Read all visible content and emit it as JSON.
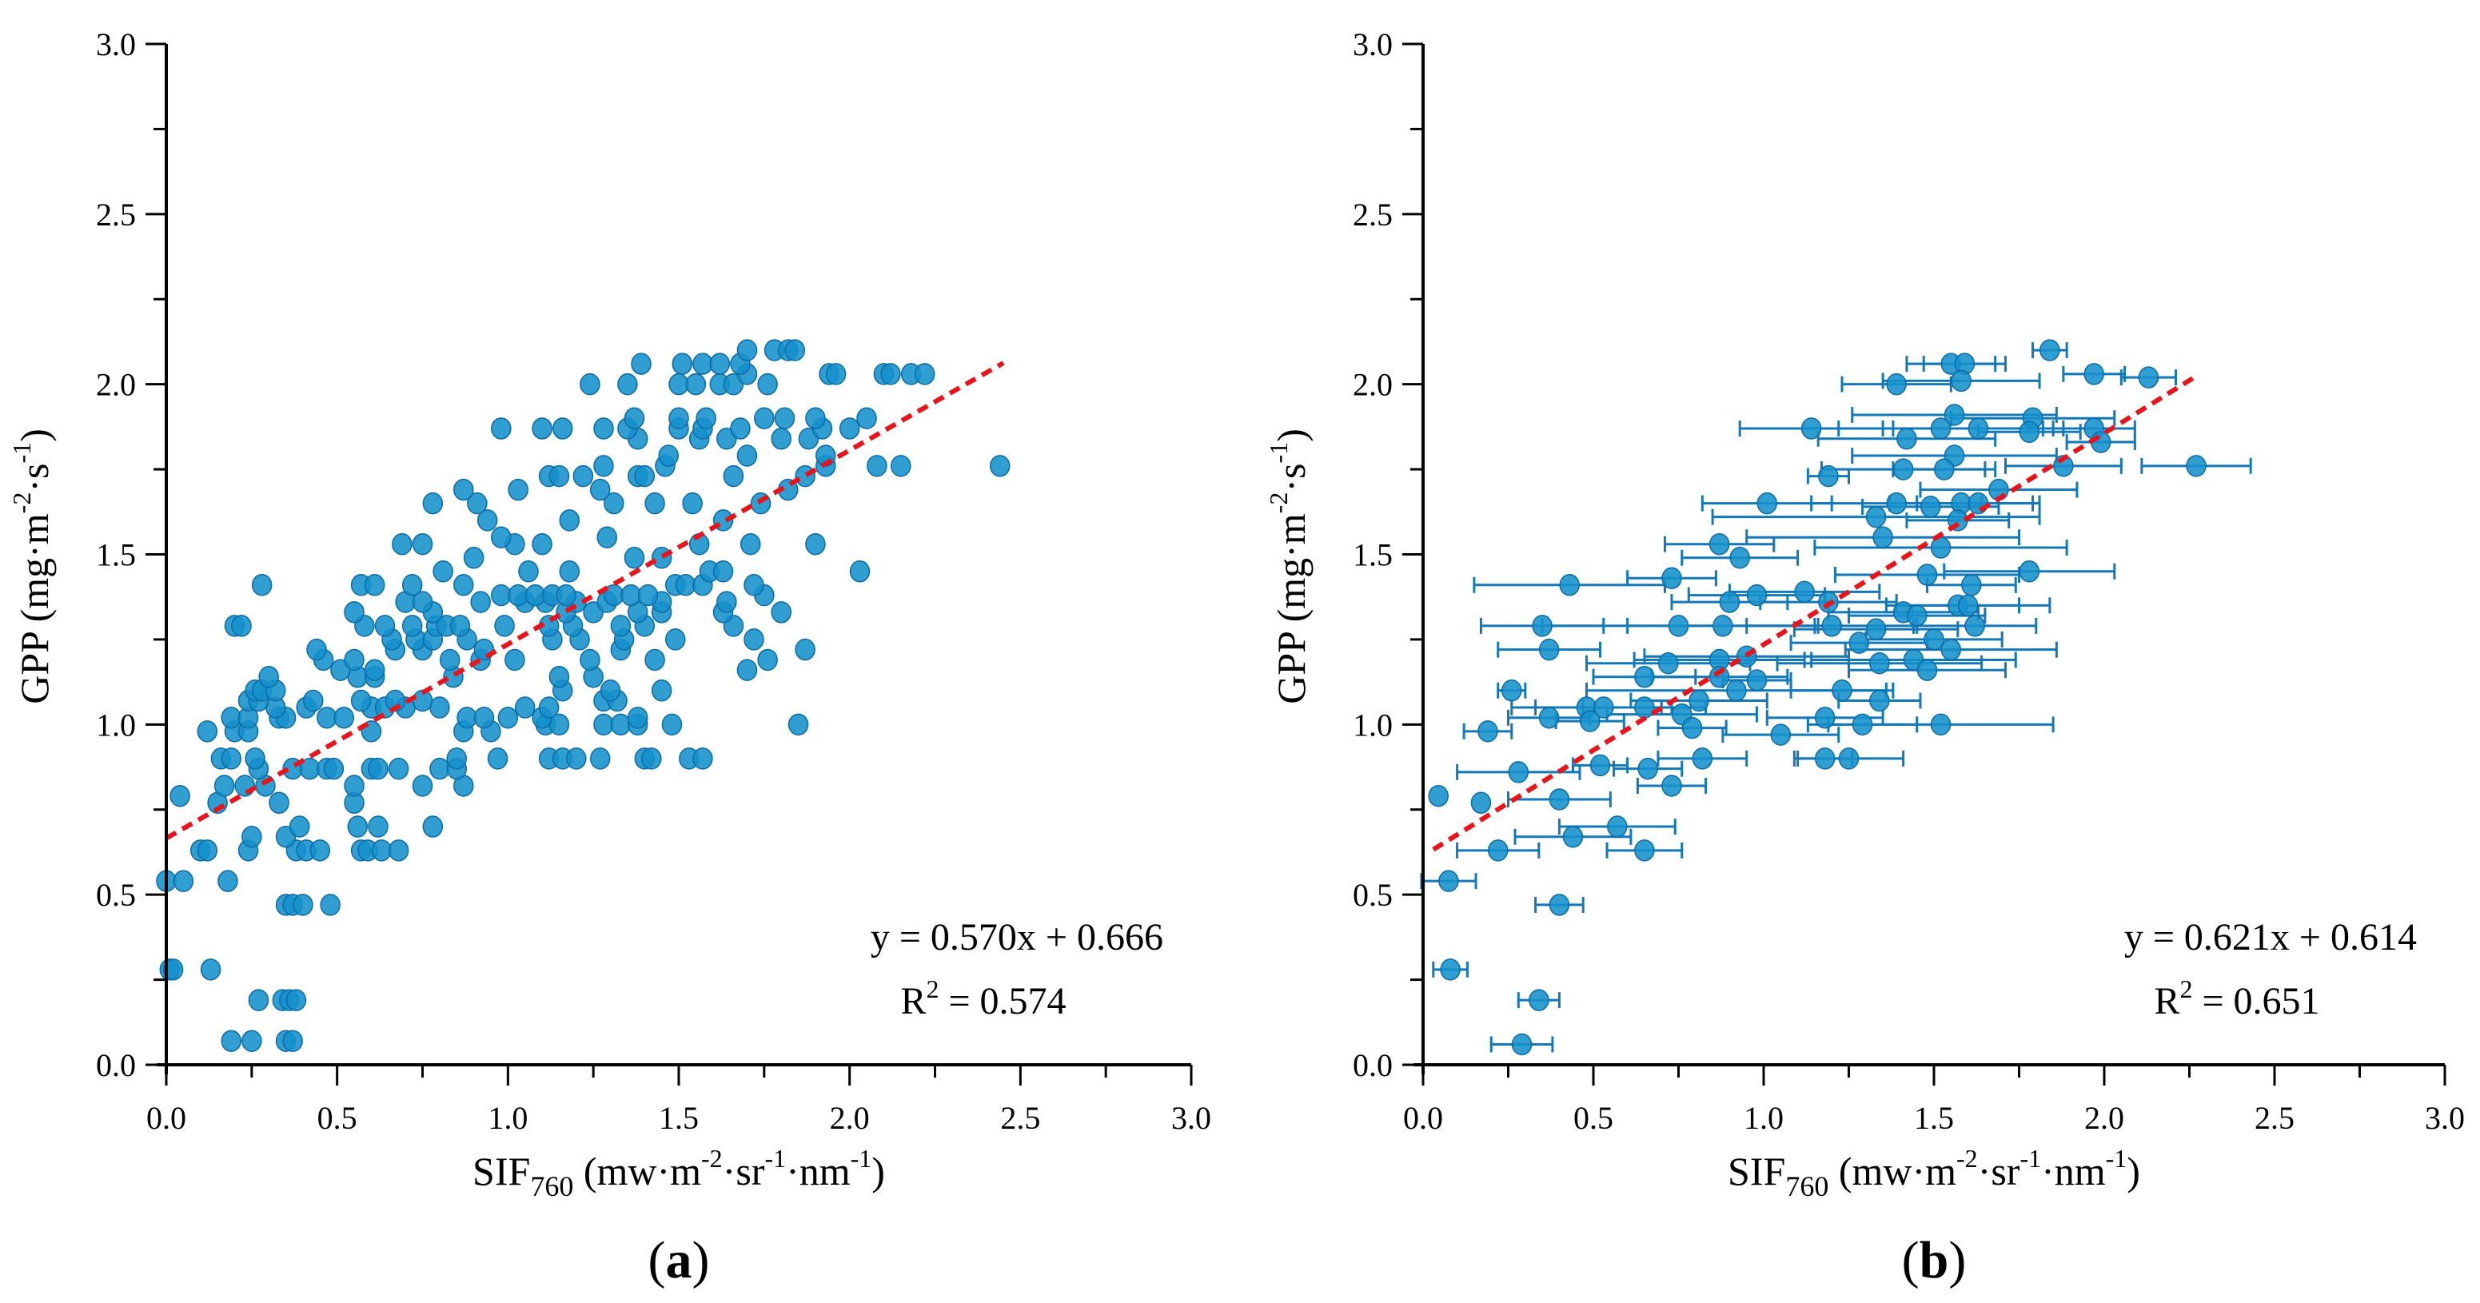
{
  "colors": {
    "marker_fill": "#1591cc",
    "marker_edge": "#0b6aa6",
    "fit_line": "#e8141b",
    "errorbar": "#1278b8",
    "axis": "#000000"
  },
  "chart_data": [
    {
      "type": "scatter",
      "panel_label": {
        "open": "(",
        "letter": "a",
        "close": ")"
      },
      "xlabel": {
        "main": "SIF",
        "sub": "760",
        "p1": " (mw·m",
        "e1": "-2",
        "p2": "·sr",
        "e2": "-1",
        "p3": "·nm",
        "e3": "-1",
        "p4": ")"
      },
      "ylabel": {
        "main": "GPP (mg·m",
        "e1": "-2",
        "p2": "·s",
        "e2": "-1",
        "p3": ")"
      },
      "xlim": [
        0,
        3.0
      ],
      "ylim": [
        0,
        3.0
      ],
      "xticks": [
        "0.0",
        "0.5",
        "1.0",
        "1.5",
        "2.0",
        "2.5",
        "3.0"
      ],
      "yticks": [
        "0.0",
        "0.5",
        "1.0",
        "1.5",
        "2.0",
        "2.5",
        "3.0"
      ],
      "grid": false,
      "fit": {
        "slope": 0.57,
        "intercept": 0.666,
        "x_range": [
          0.0,
          2.45
        ],
        "style": "dashed"
      },
      "equation": {
        "line1": "y = 0.570x + 0.666",
        "r_prefix": "R",
        "r_exp": "2",
        "r_value": " = 0.574"
      },
      "points_by_gpp": [
        {
          "y": 0.07,
          "x": [
            0.19,
            0.25,
            0.35,
            0.37
          ]
        },
        {
          "y": 0.19,
          "x": [
            0.27,
            0.34,
            0.36,
            0.38
          ]
        },
        {
          "y": 0.28,
          "x": [
            0.01,
            0.02,
            0.13
          ]
        },
        {
          "y": 0.47,
          "x": [
            0.35,
            0.37,
            0.4,
            0.48
          ]
        },
        {
          "y": 0.54,
          "x": [
            0.0,
            0.05,
            0.18
          ]
        },
        {
          "y": 0.63,
          "x": [
            0.1,
            0.12,
            0.24,
            0.38,
            0.41,
            0.45,
            0.57,
            0.59,
            0.63,
            0.68
          ]
        },
        {
          "y": 0.67,
          "x": [
            0.25,
            0.35
          ]
        },
        {
          "y": 0.7,
          "x": [
            0.39,
            0.56,
            0.62,
            0.78
          ]
        },
        {
          "y": 0.77,
          "x": [
            0.15,
            0.33,
            0.55
          ]
        },
        {
          "y": 0.79,
          "x": [
            0.04
          ]
        },
        {
          "y": 0.82,
          "x": [
            0.17,
            0.23,
            0.29,
            0.55,
            0.75,
            0.87
          ]
        },
        {
          "y": 0.87,
          "x": [
            0.27,
            0.37,
            0.42,
            0.47,
            0.49,
            0.6,
            0.62,
            0.68,
            0.8,
            0.85
          ]
        },
        {
          "y": 0.9,
          "x": [
            0.16,
            0.19,
            0.26,
            0.85,
            0.97,
            1.12,
            1.16,
            1.2,
            1.27,
            1.4,
            1.42,
            1.53,
            1.57
          ]
        },
        {
          "y": 0.98,
          "x": [
            0.12,
            0.2,
            0.24,
            0.6,
            0.87,
            0.95
          ]
        },
        {
          "y": 1.0,
          "x": [
            1.11,
            1.15,
            1.28,
            1.33,
            1.38,
            1.48,
            1.85
          ]
        },
        {
          "y": 1.02,
          "x": [
            0.19,
            0.24,
            0.33,
            0.35,
            0.47,
            0.52,
            0.88,
            0.93,
            1.0,
            1.1,
            1.38
          ]
        },
        {
          "y": 1.05,
          "x": [
            0.32,
            0.41,
            0.6,
            0.64,
            0.7,
            0.8,
            1.05,
            1.12
          ]
        },
        {
          "y": 1.07,
          "x": [
            0.24,
            0.27,
            0.43,
            0.57,
            0.67,
            0.75,
            1.28,
            1.32
          ]
        },
        {
          "y": 1.1,
          "x": [
            0.26,
            0.28,
            0.32,
            1.16,
            1.3,
            1.45
          ]
        },
        {
          "y": 1.14,
          "x": [
            0.3,
            0.56,
            0.61,
            0.84,
            1.15,
            1.25
          ]
        },
        {
          "y": 1.16,
          "x": [
            0.51,
            0.61,
            1.7
          ]
        },
        {
          "y": 1.19,
          "x": [
            0.46,
            0.55,
            0.83,
            0.92,
            1.02,
            1.24,
            1.43,
            1.76
          ]
        },
        {
          "y": 1.22,
          "x": [
            0.44,
            0.67,
            0.75,
            0.93,
            1.33,
            1.87
          ]
        },
        {
          "y": 1.25,
          "x": [
            0.66,
            0.73,
            0.78,
            0.88,
            1.13,
            1.21,
            1.34,
            1.49,
            1.72
          ]
        },
        {
          "y": 1.29,
          "x": [
            0.2,
            0.22,
            0.58,
            0.64,
            0.72,
            0.79,
            0.82,
            0.86,
            0.99,
            1.12,
            1.19,
            1.33,
            1.4,
            1.66
          ]
        },
        {
          "y": 1.33,
          "x": [
            0.55,
            0.78,
            1.17,
            1.25,
            1.38,
            1.45,
            1.63,
            1.8
          ]
        },
        {
          "y": 1.36,
          "x": [
            0.7,
            0.75,
            0.92,
            1.05,
            1.11,
            1.2,
            1.29,
            1.45,
            1.64
          ]
        },
        {
          "y": 1.38,
          "x": [
            0.98,
            1.03,
            1.08,
            1.13,
            1.17,
            1.31,
            1.36,
            1.41,
            1.75
          ]
        },
        {
          "y": 1.41,
          "x": [
            0.28,
            0.57,
            0.61,
            0.72,
            0.87,
            1.49,
            1.52,
            1.57,
            1.72
          ]
        },
        {
          "y": 1.45,
          "x": [
            0.81,
            1.06,
            1.18,
            1.59,
            1.63,
            2.03
          ]
        },
        {
          "y": 1.49,
          "x": [
            0.9,
            1.37,
            1.45
          ]
        },
        {
          "y": 1.53,
          "x": [
            0.69,
            0.75,
            1.02,
            1.1,
            1.56,
            1.71,
            1.9
          ]
        },
        {
          "y": 1.55,
          "x": [
            0.98,
            1.29
          ]
        },
        {
          "y": 1.6,
          "x": [
            0.94,
            1.18,
            1.63
          ]
        },
        {
          "y": 1.65,
          "x": [
            0.78,
            0.91,
            1.31,
            1.43,
            1.54,
            1.74
          ]
        },
        {
          "y": 1.69,
          "x": [
            0.87,
            1.03,
            1.27,
            1.82
          ]
        },
        {
          "y": 1.73,
          "x": [
            1.12,
            1.15,
            1.22,
            1.38,
            1.4,
            1.66,
            1.87
          ]
        },
        {
          "y": 1.76,
          "x": [
            1.28,
            1.46,
            1.93,
            2.08,
            2.15,
            2.44
          ]
        },
        {
          "y": 1.79,
          "x": [
            1.47,
            1.7,
            1.93
          ]
        },
        {
          "y": 1.84,
          "x": [
            1.38,
            1.56,
            1.64,
            1.8,
            1.88
          ]
        },
        {
          "y": 1.87,
          "x": [
            0.98,
            1.1,
            1.16,
            1.28,
            1.35,
            1.5,
            1.57,
            1.68,
            1.92,
            2.0
          ]
        },
        {
          "y": 1.9,
          "x": [
            1.37,
            1.5,
            1.58,
            1.75,
            1.81,
            1.9,
            2.05
          ]
        },
        {
          "y": 2.0,
          "x": [
            1.24,
            1.35,
            1.5,
            1.55,
            1.62,
            1.66,
            1.76
          ]
        },
        {
          "y": 2.03,
          "x": [
            1.7,
            1.94,
            1.96,
            2.1,
            2.12,
            2.18,
            2.22
          ]
        },
        {
          "y": 2.06,
          "x": [
            1.39,
            1.51,
            1.57,
            1.62,
            1.68
          ]
        },
        {
          "y": 2.1,
          "x": [
            1.7,
            1.78,
            1.82,
            1.84
          ]
        }
      ]
    },
    {
      "type": "scatter",
      "panel_label": {
        "open": "(",
        "letter": "b",
        "close": ")"
      },
      "xlabel": {
        "main": "SIF",
        "sub": "760",
        "p1": " (mw·m",
        "e1": "-2",
        "p2": "·sr",
        "e2": "-1",
        "p3": "·nm",
        "e3": "-1",
        "p4": ")"
      },
      "ylabel": {
        "main": "GPP (mg·m",
        "e1": "-2",
        "p2": "·s",
        "e2": "-1",
        "p3": ")"
      },
      "xlim": [
        0,
        3.0
      ],
      "ylim": [
        0,
        3.0
      ],
      "xticks": [
        "0.0",
        "0.5",
        "1.0",
        "1.5",
        "2.0",
        "2.5",
        "3.0"
      ],
      "yticks": [
        "0.0",
        "0.5",
        "1.0",
        "1.5",
        "2.0",
        "2.5",
        "3.0"
      ],
      "grid": false,
      "fit": {
        "slope": 0.621,
        "intercept": 0.614,
        "x_range": [
          0.03,
          2.27
        ],
        "style": "dashed"
      },
      "equation": {
        "line1": "y = 0.621x + 0.614",
        "r_prefix": "R",
        "r_exp": "2",
        "r_value": " = 0.651"
      },
      "points": [
        {
          "x": 1.84,
          "y": 2.1,
          "xerr": 0.05
        },
        {
          "x": 1.55,
          "y": 2.06,
          "xerr": 0.13
        },
        {
          "x": 1.59,
          "y": 2.06,
          "xerr": 0.12
        },
        {
          "x": 1.39,
          "y": 2.0,
          "xerr": 0.16
        },
        {
          "x": 1.58,
          "y": 2.01,
          "xerr": 0.23
        },
        {
          "x": 1.97,
          "y": 2.03,
          "xerr": 0.09
        },
        {
          "x": 2.13,
          "y": 2.02,
          "xerr": 0.08
        },
        {
          "x": 1.14,
          "y": 1.87,
          "xerr": 0.21
        },
        {
          "x": 1.56,
          "y": 1.91,
          "xerr": 0.3
        },
        {
          "x": 1.79,
          "y": 1.9,
          "xerr": 0.24
        },
        {
          "x": 1.52,
          "y": 1.87,
          "xerr": 0.3
        },
        {
          "x": 1.63,
          "y": 1.87,
          "xerr": 0.25
        },
        {
          "x": 1.78,
          "y": 1.86,
          "xerr": 0.15
        },
        {
          "x": 1.97,
          "y": 1.87,
          "xerr": 0.12
        },
        {
          "x": 1.42,
          "y": 1.84,
          "xerr": 0.26
        },
        {
          "x": 1.99,
          "y": 1.83,
          "xerr": 0.1
        },
        {
          "x": 1.56,
          "y": 1.79,
          "xerr": 0.3
        },
        {
          "x": 1.88,
          "y": 1.76,
          "xerr": 0.17
        },
        {
          "x": 2.27,
          "y": 1.76,
          "xerr": 0.16
        },
        {
          "x": 1.41,
          "y": 1.75,
          "xerr": 0.24
        },
        {
          "x": 1.53,
          "y": 1.75,
          "xerr": 0.15
        },
        {
          "x": 1.19,
          "y": 1.73,
          "xerr": 0.06
        },
        {
          "x": 1.69,
          "y": 1.69,
          "xerr": 0.23
        },
        {
          "x": 1.01,
          "y": 1.65,
          "xerr": 0.19
        },
        {
          "x": 1.39,
          "y": 1.65,
          "xerr": 0.25
        },
        {
          "x": 1.49,
          "y": 1.64,
          "xerr": 0.2
        },
        {
          "x": 1.58,
          "y": 1.65,
          "xerr": 0.21
        },
        {
          "x": 1.63,
          "y": 1.65,
          "xerr": 0.18
        },
        {
          "x": 1.33,
          "y": 1.61,
          "xerr": 0.48
        },
        {
          "x": 1.57,
          "y": 1.6,
          "xerr": 0.15
        },
        {
          "x": 0.87,
          "y": 1.53,
          "xerr": 0.16
        },
        {
          "x": 1.35,
          "y": 1.55,
          "xerr": 0.4
        },
        {
          "x": 1.52,
          "y": 1.52,
          "xerr": 0.37
        },
        {
          "x": 0.93,
          "y": 1.49,
          "xerr": 0.17
        },
        {
          "x": 0.43,
          "y": 1.41,
          "xerr": 0.28
        },
        {
          "x": 0.73,
          "y": 1.43,
          "xerr": 0.13
        },
        {
          "x": 1.48,
          "y": 1.44,
          "xerr": 0.27
        },
        {
          "x": 1.78,
          "y": 1.45,
          "xerr": 0.25
        },
        {
          "x": 1.61,
          "y": 1.41,
          "xerr": 0.13
        },
        {
          "x": 0.9,
          "y": 1.36,
          "xerr": 0.17
        },
        {
          "x": 0.98,
          "y": 1.38,
          "xerr": 0.2
        },
        {
          "x": 1.12,
          "y": 1.39,
          "xerr": 0.22
        },
        {
          "x": 1.19,
          "y": 1.36,
          "xerr": 0.2
        },
        {
          "x": 1.41,
          "y": 1.33,
          "xerr": 0.22
        },
        {
          "x": 1.57,
          "y": 1.35,
          "xerr": 0.18
        },
        {
          "x": 1.6,
          "y": 1.35,
          "xerr": 0.24
        },
        {
          "x": 1.45,
          "y": 1.32,
          "xerr": 0.2
        },
        {
          "x": 0.35,
          "y": 1.29,
          "xerr": 0.18
        },
        {
          "x": 0.75,
          "y": 1.29,
          "xerr": 0.4
        },
        {
          "x": 0.88,
          "y": 1.29,
          "xerr": 0.28
        },
        {
          "x": 1.2,
          "y": 1.29,
          "xerr": 0.25
        },
        {
          "x": 1.33,
          "y": 1.28,
          "xerr": 0.24
        },
        {
          "x": 1.62,
          "y": 1.29,
          "xerr": 0.18
        },
        {
          "x": 0.37,
          "y": 1.22,
          "xerr": 0.15
        },
        {
          "x": 1.28,
          "y": 1.24,
          "xerr": 0.2
        },
        {
          "x": 1.5,
          "y": 1.25,
          "xerr": 0.2
        },
        {
          "x": 1.55,
          "y": 1.22,
          "xerr": 0.31
        },
        {
          "x": 0.72,
          "y": 1.18,
          "xerr": 0.24
        },
        {
          "x": 0.87,
          "y": 1.19,
          "xerr": 0.25
        },
        {
          "x": 0.95,
          "y": 1.2,
          "xerr": 0.3
        },
        {
          "x": 1.34,
          "y": 1.18,
          "xerr": 0.3
        },
        {
          "x": 1.44,
          "y": 1.19,
          "xerr": 0.3
        },
        {
          "x": 0.65,
          "y": 1.14,
          "xerr": 0.15
        },
        {
          "x": 0.87,
          "y": 1.14,
          "xerr": 0.2
        },
        {
          "x": 0.98,
          "y": 1.13,
          "xerr": 0.1
        },
        {
          "x": 1.48,
          "y": 1.16,
          "xerr": 0.23
        },
        {
          "x": 0.26,
          "y": 1.1,
          "xerr": 0.04
        },
        {
          "x": 0.92,
          "y": 1.1,
          "xerr": 0.44
        },
        {
          "x": 1.23,
          "y": 1.1,
          "xerr": 0.15
        },
        {
          "x": 1.34,
          "y": 1.07,
          "xerr": 0.12
        },
        {
          "x": 0.48,
          "y": 1.05,
          "xerr": 0.22
        },
        {
          "x": 0.53,
          "y": 1.05,
          "xerr": 0.2
        },
        {
          "x": 0.65,
          "y": 1.05,
          "xerr": 0.18
        },
        {
          "x": 0.81,
          "y": 1.07,
          "xerr": 0.2
        },
        {
          "x": 0.76,
          "y": 1.03,
          "xerr": 0.22
        },
        {
          "x": 0.37,
          "y": 1.02,
          "xerr": 0.12
        },
        {
          "x": 0.49,
          "y": 1.01,
          "xerr": 0.1
        },
        {
          "x": 1.18,
          "y": 1.02,
          "xerr": 0.17
        },
        {
          "x": 0.19,
          "y": 0.98,
          "xerr": 0.07
        },
        {
          "x": 0.79,
          "y": 0.99,
          "xerr": 0.1
        },
        {
          "x": 1.05,
          "y": 0.97,
          "xerr": 0.17
        },
        {
          "x": 1.29,
          "y": 1.0,
          "xerr": 0.16
        },
        {
          "x": 1.52,
          "y": 1.0,
          "xerr": 0.33
        },
        {
          "x": 0.28,
          "y": 0.86,
          "xerr": 0.18
        },
        {
          "x": 0.52,
          "y": 0.88,
          "xerr": 0.08
        },
        {
          "x": 0.66,
          "y": 0.87,
          "xerr": 0.1
        },
        {
          "x": 0.82,
          "y": 0.9,
          "xerr": 0.13
        },
        {
          "x": 1.18,
          "y": 0.9,
          "xerr": 0.08
        },
        {
          "x": 1.25,
          "y": 0.9,
          "xerr": 0.16
        },
        {
          "x": 0.73,
          "y": 0.82,
          "xerr": 0.1
        },
        {
          "x": 0.045,
          "y": 0.79,
          "xerr": 0
        },
        {
          "x": 0.17,
          "y": 0.77,
          "xerr": 0
        },
        {
          "x": 0.4,
          "y": 0.78,
          "xerr": 0.15
        },
        {
          "x": 0.57,
          "y": 0.7,
          "xerr": 0.17
        },
        {
          "x": 0.44,
          "y": 0.67,
          "xerr": 0.17
        },
        {
          "x": 0.22,
          "y": 0.63,
          "xerr": 0.12
        },
        {
          "x": 0.65,
          "y": 0.63,
          "xerr": 0.11
        },
        {
          "x": 0.075,
          "y": 0.54,
          "xerr": 0.08
        },
        {
          "x": 0.4,
          "y": 0.47,
          "xerr": 0.07
        },
        {
          "x": 0.08,
          "y": 0.28,
          "xerr": 0.05
        },
        {
          "x": 0.34,
          "y": 0.19,
          "xerr": 0.06
        },
        {
          "x": 0.29,
          "y": 0.06,
          "xerr": 0.09
        }
      ]
    }
  ]
}
